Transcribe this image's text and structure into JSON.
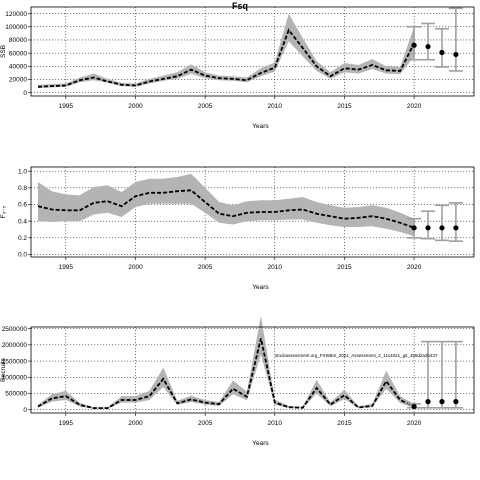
{
  "figure_title": "Fsq",
  "watermark": "stockassessment.org_FIH5Bm_2021_Assessment_2_1114021_git_456d2a2b437",
  "colors": {
    "band": "#b4b4b4",
    "line": "#000000",
    "forecast_bar": "#a0a0a0"
  },
  "chart_data": [
    {
      "type": "line",
      "title": "Fsq",
      "xlabel": "Years",
      "ylabel": "SSB",
      "xlim": [
        1992.5,
        2024.3
      ],
      "ylim": [
        -5000,
        130000
      ],
      "xticks": [
        1995,
        2000,
        2005,
        2010,
        2015,
        2020
      ],
      "yticks": [
        0,
        20000,
        40000,
        60000,
        80000,
        100000,
        120000
      ],
      "ytick_labels": [
        "0",
        "20000",
        "40000",
        "60000",
        "80000",
        "100000",
        "120000"
      ],
      "grid": true,
      "x": [
        1993,
        1994,
        1995,
        1996,
        1997,
        1998,
        1999,
        2000,
        2001,
        2002,
        2003,
        2004,
        2005,
        2006,
        2007,
        2008,
        2009,
        2010,
        2011,
        2012,
        2013,
        2014,
        2015,
        2016,
        2017,
        2018,
        2019,
        2020
      ],
      "estimate": [
        9000,
        10000,
        11000,
        19000,
        23000,
        17000,
        12000,
        11000,
        17000,
        21000,
        25000,
        35000,
        26000,
        22000,
        21000,
        19000,
        30000,
        38000,
        95000,
        68000,
        40000,
        25000,
        37000,
        35000,
        42000,
        34000,
        33000,
        75000
      ],
      "lower": [
        7000,
        8000,
        9000,
        16000,
        19000,
        15000,
        10000,
        9000,
        14000,
        18000,
        21000,
        29000,
        22000,
        19000,
        18000,
        16000,
        25000,
        32000,
        78000,
        55000,
        33000,
        21000,
        31000,
        29000,
        36000,
        29000,
        28000,
        55000
      ],
      "upper": [
        12000,
        13000,
        14000,
        23000,
        29000,
        21000,
        15000,
        14000,
        21000,
        26000,
        31000,
        43000,
        31000,
        26000,
        25000,
        23000,
        37000,
        46000,
        120000,
        83000,
        48000,
        31000,
        45000,
        42000,
        51000,
        40000,
        39000,
        100000
      ],
      "forecast": [
        {
          "x": 2020,
          "value": 72000,
          "low": 50000,
          "high": 100000
        },
        {
          "x": 2021,
          "value": 70000,
          "low": 50000,
          "high": 105000
        },
        {
          "x": 2022,
          "value": 61000,
          "low": 39000,
          "high": 97000
        },
        {
          "x": 2023,
          "value": 58000,
          "low": 33000,
          "high": 128000
        }
      ]
    },
    {
      "type": "line",
      "title": "",
      "xlabel": "Years",
      "ylabel": "F₃₋₅",
      "xlim": [
        1992.5,
        2024.3
      ],
      "ylim": [
        -0.03,
        1.05
      ],
      "xticks": [
        1995,
        2000,
        2005,
        2010,
        2015,
        2020
      ],
      "yticks": [
        0.0,
        0.2,
        0.4,
        0.6,
        0.8,
        1.0
      ],
      "ytick_labels": [
        "0.0",
        "0.2",
        "0.4",
        "0.6",
        "0.8",
        "1.0"
      ],
      "grid": true,
      "x": [
        1993,
        1994,
        1995,
        1996,
        1997,
        1998,
        1999,
        2000,
        2001,
        2002,
        2003,
        2004,
        2005,
        2006,
        2007,
        2008,
        2009,
        2010,
        2011,
        2012,
        2013,
        2014,
        2015,
        2016,
        2017,
        2018,
        2019,
        2020
      ],
      "estimate": [
        0.58,
        0.54,
        0.53,
        0.53,
        0.62,
        0.64,
        0.58,
        0.7,
        0.74,
        0.74,
        0.76,
        0.77,
        0.63,
        0.49,
        0.46,
        0.5,
        0.51,
        0.51,
        0.53,
        0.54,
        0.49,
        0.46,
        0.43,
        0.44,
        0.46,
        0.43,
        0.38,
        0.32
      ],
      "lower": [
        0.4,
        0.39,
        0.4,
        0.4,
        0.48,
        0.5,
        0.45,
        0.57,
        0.61,
        0.61,
        0.61,
        0.61,
        0.5,
        0.38,
        0.36,
        0.4,
        0.41,
        0.41,
        0.42,
        0.42,
        0.38,
        0.35,
        0.33,
        0.33,
        0.34,
        0.31,
        0.27,
        0.22
      ],
      "upper": [
        0.87,
        0.76,
        0.72,
        0.71,
        0.81,
        0.83,
        0.75,
        0.87,
        0.91,
        0.91,
        0.93,
        0.97,
        0.8,
        0.63,
        0.59,
        0.64,
        0.65,
        0.65,
        0.67,
        0.69,
        0.63,
        0.59,
        0.56,
        0.57,
        0.59,
        0.56,
        0.5,
        0.43
      ],
      "forecast": [
        {
          "x": 2020,
          "value": 0.32,
          "low": 0.2,
          "high": 0.43
        },
        {
          "x": 2021,
          "value": 0.32,
          "low": 0.19,
          "high": 0.52
        },
        {
          "x": 2022,
          "value": 0.32,
          "low": 0.17,
          "high": 0.59
        },
        {
          "x": 2023,
          "value": 0.32,
          "low": 0.16,
          "high": 0.62
        }
      ]
    },
    {
      "type": "line",
      "title": "",
      "xlabel": "Years",
      "ylabel": "Recruits",
      "xlim": [
        1992.5,
        2024.3
      ],
      "ylim": [
        -100000,
        2550000
      ],
      "xticks": [
        1995,
        2000,
        2005,
        2010,
        2015,
        2020
      ],
      "yticks": [
        0,
        500000,
        1000000,
        1500000,
        2000000,
        2500000
      ],
      "ytick_labels": [
        "0",
        "500000",
        "1000000",
        "1500000",
        "2000000",
        "2500000"
      ],
      "grid": true,
      "x": [
        1993,
        1994,
        1995,
        1996,
        1997,
        1998,
        1999,
        2000,
        2001,
        2002,
        2003,
        2004,
        2005,
        2006,
        2007,
        2008,
        2009,
        2010,
        2011,
        2012,
        2013,
        2014,
        2015,
        2016,
        2017,
        2018,
        2019,
        2020
      ],
      "estimate": [
        100000,
        350000,
        420000,
        150000,
        50000,
        50000,
        300000,
        300000,
        420000,
        950000,
        200000,
        320000,
        220000,
        170000,
        650000,
        400000,
        2200000,
        220000,
        80000,
        60000,
        670000,
        160000,
        450000,
        70000,
        120000,
        880000,
        300000,
        100000
      ],
      "lower": [
        60000,
        250000,
        300000,
        100000,
        30000,
        30000,
        220000,
        220000,
        300000,
        700000,
        150000,
        240000,
        160000,
        120000,
        480000,
        290000,
        1700000,
        160000,
        50000,
        40000,
        500000,
        110000,
        330000,
        45000,
        80000,
        650000,
        210000,
        60000
      ],
      "upper": [
        150000,
        480000,
        580000,
        210000,
        80000,
        80000,
        420000,
        420000,
        580000,
        1300000,
        280000,
        430000,
        300000,
        240000,
        900000,
        560000,
        2900000,
        310000,
        120000,
        90000,
        920000,
        230000,
        620000,
        110000,
        180000,
        1200000,
        420000,
        180000
      ],
      "forecast": [
        {
          "x": 2020,
          "value": 100000,
          "low": 60000,
          "high": 180000
        },
        {
          "x": 2021,
          "value": 250000,
          "low": 60000,
          "high": 2100000
        },
        {
          "x": 2022,
          "value": 250000,
          "low": 60000,
          "high": 2100000
        },
        {
          "x": 2023,
          "value": 250000,
          "low": 60000,
          "high": 2100000
        }
      ]
    }
  ]
}
